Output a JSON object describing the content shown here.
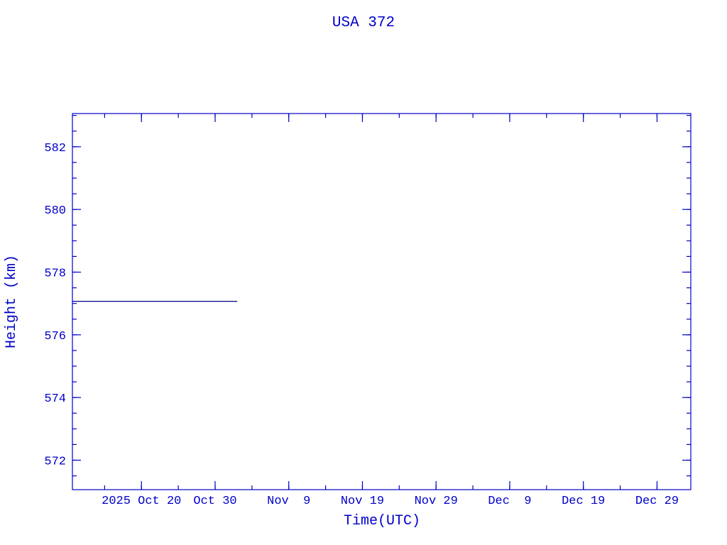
{
  "chart_data": {
    "type": "line",
    "title": "USA 372",
    "xlabel": "Time(UTC)",
    "ylabel": "Height (km)",
    "xlim": [
      "2025-10-10T15:00:00Z",
      "2026-01-02T14:00:00Z"
    ],
    "ylim": [
      571.06,
      583.06
    ],
    "x_ticks": [
      {
        "date": "2025-10-20T00:00:00Z",
        "label": "2025 Oct 20"
      },
      {
        "date": "2025-10-30T00:00:00Z",
        "label": "Oct 30"
      },
      {
        "date": "2025-11-09T00:00:00Z",
        "label": "Nov  9"
      },
      {
        "date": "2025-11-19T00:00:00Z",
        "label": "Nov 19"
      },
      {
        "date": "2025-11-29T00:00:00Z",
        "label": "Nov 29"
      },
      {
        "date": "2025-12-09T00:00:00Z",
        "label": "Dec  9"
      },
      {
        "date": "2025-12-19T00:00:00Z",
        "label": "Dec 19"
      },
      {
        "date": "2025-12-29T00:00:00Z",
        "label": "Dec 29"
      }
    ],
    "x_minor_tick_days": 5,
    "y_ticks": [
      572,
      574,
      576,
      578,
      580,
      582
    ],
    "y_minor_tick_step": 0.5,
    "grid": false,
    "colors": {
      "axes": "#0000c8",
      "series": "#00008c"
    },
    "series": [
      {
        "x": [
          "2025-10-10T15:00:00Z",
          "2025-11-02T00:00:00Z"
        ],
        "y": [
          577.07,
          577.07
        ]
      }
    ]
  }
}
